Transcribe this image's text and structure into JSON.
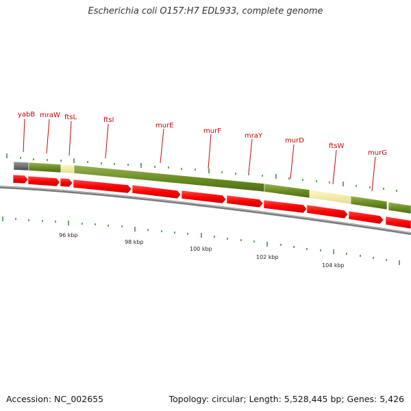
{
  "title": "Escherichia coli O157:H7 EDL933, complete genome",
  "footer": {
    "accession": "Accession: NC_002655",
    "summary": "Topology: circular; Length: 5,528,445 bp; Genes: 5,426"
  },
  "gene_labels": [
    "yabB",
    "mraW",
    "ftsL",
    "ftsI",
    "murE",
    "murF",
    "mraY",
    "murD",
    "ftsW",
    "murG"
  ],
  "scale_labels": [
    "96 kbp",
    "98 kbp",
    "100 kbp",
    "102 kbp",
    "104 kbp"
  ],
  "colors": {
    "gene_label": "#cc0000",
    "gene_track": "#6b8e23",
    "highlight": "#f0e68c",
    "cds_arrow": "#ff0000",
    "backbone": "#808080",
    "tick": "#2e8b2e"
  }
}
